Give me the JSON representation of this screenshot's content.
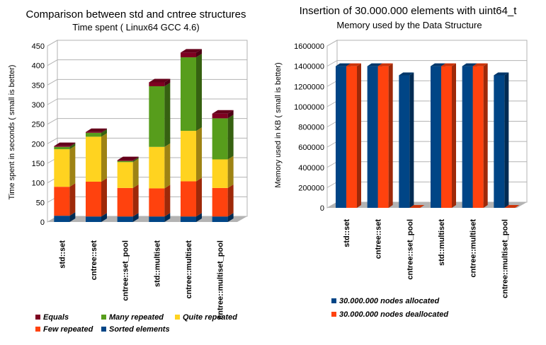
{
  "chart_data": [
    {
      "type": "bar",
      "stacked": true,
      "three_d": true,
      "title": "Comparison between std and cntree structures",
      "subtitle": "Time spent ( Linux64 GCC 4.6)",
      "xlabel": "",
      "ylabel": "Time spent in seconds ( small is better)",
      "ylim": [
        0,
        450
      ],
      "yticks": [
        0,
        50,
        100,
        150,
        200,
        250,
        300,
        350,
        400,
        450
      ],
      "grid": true,
      "legend_position": "bottom",
      "categories": [
        "std::set",
        "cntree::set",
        "cntree::set_pool",
        "std::multiset",
        "cntree::multiset",
        "cntree::multiset_pool"
      ],
      "series": [
        {
          "name": "Sorted elements",
          "color": "#004586",
          "values": [
            16,
            14,
            14,
            14,
            14,
            14
          ]
        },
        {
          "name": "Few repeated",
          "color": "#ff420e",
          "values": [
            74,
            89,
            73,
            72,
            90,
            73
          ]
        },
        {
          "name": "Quite repeated",
          "color": "#ffd320",
          "values": [
            96,
            115,
            66,
            106,
            129,
            73
          ]
        },
        {
          "name": "Many repeated",
          "color": "#579d1c",
          "values": [
            6,
            10,
            3,
            155,
            188,
            105
          ]
        },
        {
          "name": "Equals",
          "color": "#7e0021",
          "values": [
            2,
            2,
            2,
            10,
            12,
            12
          ]
        }
      ],
      "legend_order": [
        "Equals",
        "Many repeated",
        "Quite repeated",
        "Few repeated",
        "Sorted elements"
      ]
    },
    {
      "type": "bar",
      "three_d": true,
      "title": "Insertion of 30.000.000 elements with uint64_t",
      "subtitle": "Memory used by the Data Structure",
      "xlabel": "",
      "ylabel": "Memory used in KB ( small is better)",
      "ylim": [
        0,
        1600000
      ],
      "yticks": [
        0,
        200000,
        400000,
        600000,
        800000,
        1000000,
        1200000,
        1400000,
        1600000
      ],
      "grid": true,
      "legend_position": "bottom",
      "categories": [
        "std::set",
        "cntree::set",
        "cntree::set_pool",
        "std::multiset",
        "cntree::multiset",
        "cntree::multiset_pool"
      ],
      "series": [
        {
          "name": "30.000.000 nodes allocated",
          "color": "#004586",
          "values": [
            1400000,
            1400000,
            1310000,
            1400000,
            1400000,
            1310000
          ]
        },
        {
          "name": "30.000.000 nodes deallocated",
          "color": "#ff420e",
          "values": [
            1400000,
            1400000,
            0,
            1400000,
            1400000,
            0
          ]
        }
      ]
    }
  ]
}
